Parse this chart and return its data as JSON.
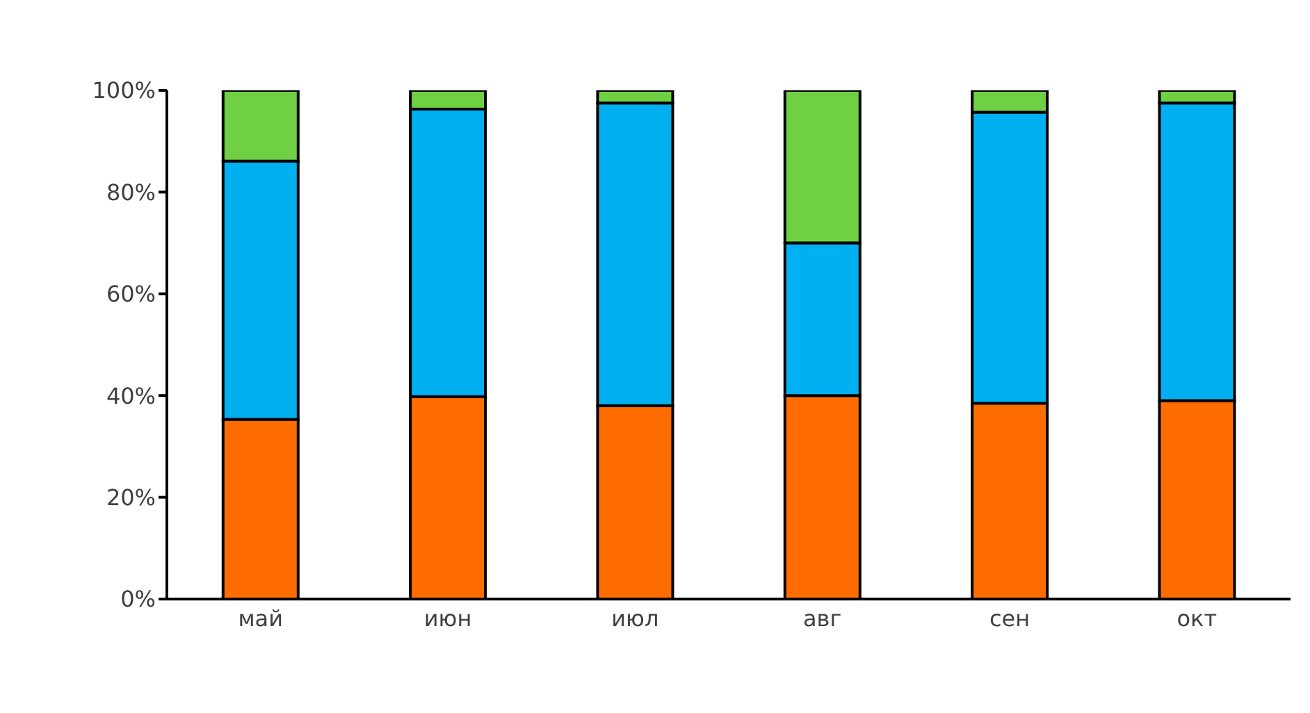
{
  "chart_data": {
    "type": "bar",
    "stacked": true,
    "categories": [
      "май",
      "июн",
      "июл",
      "авг",
      "сен",
      "окт"
    ],
    "series": [
      {
        "color": "#ff6d00",
        "values": [
          35.3,
          39.8,
          38,
          40,
          38.5,
          39
        ]
      },
      {
        "color": "#00b0f0",
        "values": [
          50.8,
          56.5,
          59.5,
          30,
          57.2,
          58.5
        ]
      },
      {
        "color": "#70d044",
        "values": [
          13.9,
          3.7,
          2.5,
          30,
          4.3,
          2.5
        ]
      }
    ],
    "ylim": [
      0,
      100
    ],
    "yticks": [
      {
        "value": 0,
        "label": "0%"
      },
      {
        "value": 20,
        "label": "20%"
      },
      {
        "value": 40,
        "label": "40%"
      },
      {
        "value": 60,
        "label": "60%"
      },
      {
        "value": 80,
        "label": "80%"
      },
      {
        "value": 100,
        "label": "100%"
      }
    ],
    "grid": false,
    "legend": false
  }
}
